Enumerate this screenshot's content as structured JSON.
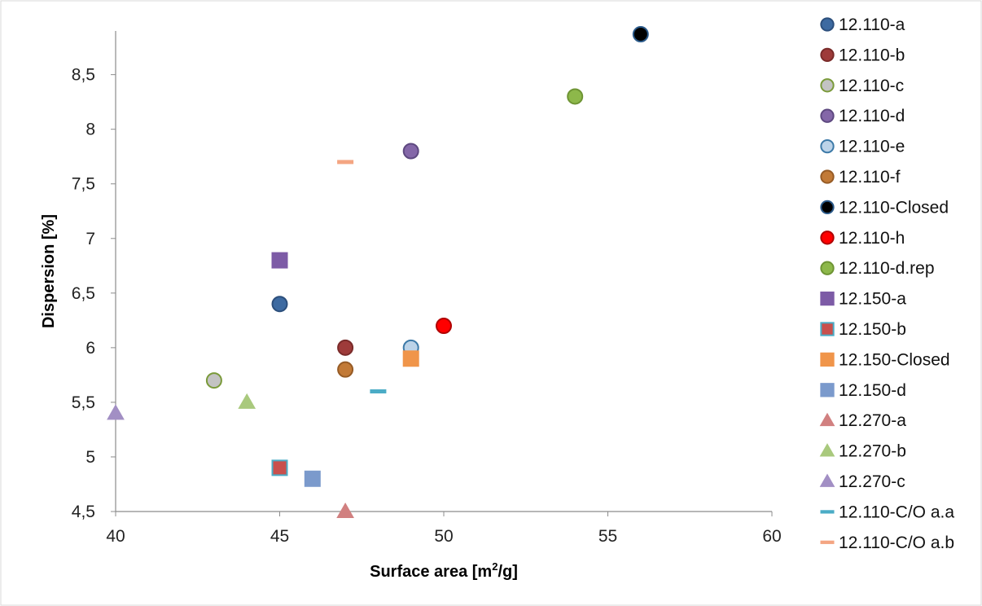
{
  "chart_data": {
    "type": "scatter",
    "title": "",
    "xlabel": "Surface area [m",
    "xlabel_sup": "2",
    "xlabel_tail": "/g]",
    "ylabel": "Dispersion [%]",
    "xlim": [
      40,
      60
    ],
    "ylim": [
      4.5,
      8.9
    ],
    "x_ticks": [
      40,
      45,
      50,
      55,
      60
    ],
    "x_tick_labels": [
      "40",
      "45",
      "50",
      "55",
      "60"
    ],
    "y_ticks": [
      4.5,
      5,
      5.5,
      6,
      6.5,
      7,
      7.5,
      8,
      8.5
    ],
    "y_tick_labels": [
      "4,5",
      "5",
      "5,5",
      "6",
      "6,5",
      "7",
      "7,5",
      "8",
      "8,5"
    ],
    "grid": false,
    "legend_position": "right",
    "series": [
      {
        "name": "12.110-a",
        "marker": "circle",
        "fill": "#3d6aa1",
        "stroke": "#2c4f7c",
        "points": [
          [
            45,
            6.4
          ]
        ]
      },
      {
        "name": "12.110-b",
        "marker": "circle",
        "fill": "#9e3b3a",
        "stroke": "#7a2b2a",
        "points": [
          [
            47,
            6.0
          ]
        ]
      },
      {
        "name": "12.110-c",
        "marker": "circle",
        "fill": "#c3c3c3",
        "stroke": "#7a9a3a",
        "points": [
          [
            43,
            5.7
          ]
        ]
      },
      {
        "name": "12.110-d",
        "marker": "circle",
        "fill": "#8467a8",
        "stroke": "#5e4980",
        "points": [
          [
            49,
            7.8
          ]
        ]
      },
      {
        "name": "12.110-e",
        "marker": "circle",
        "fill": "#bcd3e8",
        "stroke": "#3d7aa8",
        "points": [
          [
            49,
            6.0
          ]
        ]
      },
      {
        "name": "12.110-f",
        "marker": "circle",
        "fill": "#c27a37",
        "stroke": "#965b25",
        "points": [
          [
            47,
            5.8
          ]
        ]
      },
      {
        "name": "12.110-Closed",
        "marker": "circle",
        "fill": "#000000",
        "stroke": "#2b5a8a",
        "points": [
          [
            56,
            8.87
          ]
        ]
      },
      {
        "name": "12.110-h",
        "marker": "circle",
        "fill": "#ff0000",
        "stroke": "#b00000",
        "points": [
          [
            50,
            6.2
          ]
        ]
      },
      {
        "name": "12.110-d.rep",
        "marker": "circle",
        "fill": "#8db84a",
        "stroke": "#6e9434",
        "points": [
          [
            54,
            8.3
          ]
        ]
      },
      {
        "name": "12.150-a",
        "marker": "square",
        "fill": "#7d5ba6",
        "stroke": "#7d5ba6",
        "points": [
          [
            45,
            6.8
          ]
        ]
      },
      {
        "name": "12.150-b",
        "marker": "square",
        "fill": "#c9504d",
        "stroke": "#4bacc6",
        "points": [
          [
            45,
            4.9
          ]
        ]
      },
      {
        "name": "12.150-Closed",
        "marker": "square",
        "fill": "#f0954a",
        "stroke": "#f0954a",
        "points": [
          [
            49,
            5.9
          ]
        ]
      },
      {
        "name": "12.150-d",
        "marker": "square",
        "fill": "#7b9acc",
        "stroke": "#7b9acc",
        "points": [
          [
            46,
            4.8
          ]
        ]
      },
      {
        "name": "12.270-a",
        "marker": "triangle",
        "fill": "#d18080",
        "stroke": "#d18080",
        "points": [
          [
            47,
            4.5
          ]
        ]
      },
      {
        "name": "12.270-b",
        "marker": "triangle",
        "fill": "#a9c97d",
        "stroke": "#a9c97d",
        "points": [
          [
            44,
            5.5
          ]
        ]
      },
      {
        "name": "12.270-c",
        "marker": "triangle",
        "fill": "#a28fc4",
        "stroke": "#a28fc4",
        "points": [
          [
            40,
            5.4
          ]
        ]
      },
      {
        "name": "12.110-C/O a.a",
        "marker": "dash",
        "fill": "#4bacc6",
        "stroke": "#4bacc6",
        "points": [
          [
            48,
            5.6
          ]
        ]
      },
      {
        "name": "12.110-C/O a.b",
        "marker": "dash",
        "fill": "#f4a582",
        "stroke": "#f4a582",
        "points": [
          [
            47,
            7.7
          ]
        ]
      }
    ]
  }
}
